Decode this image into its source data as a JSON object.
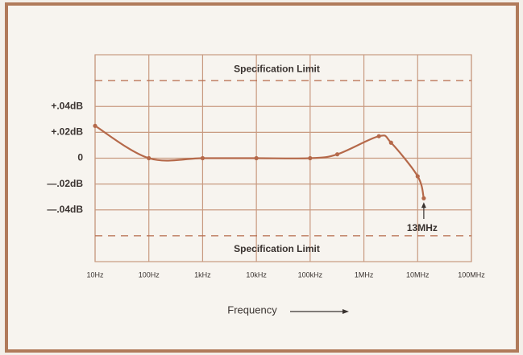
{
  "chart_data": {
    "type": "line",
    "x_label": "Frequency",
    "xscale": "log",
    "xlim": [
      10,
      100000000
    ],
    "xticks": [
      {
        "value": 10,
        "label": "10Hz"
      },
      {
        "value": 100,
        "label": "100Hz"
      },
      {
        "value": 1000,
        "label": "1kHz"
      },
      {
        "value": 10000,
        "label": "10kHz"
      },
      {
        "value": 100000,
        "label": "100kHz"
      },
      {
        "value": 1000000,
        "label": "1MHz"
      },
      {
        "value": 10000000,
        "label": "10MHz"
      },
      {
        "value": 100000000,
        "label": "100MHz"
      }
    ],
    "ylim": [
      -0.08,
      0.08
    ],
    "yticks": [
      {
        "value": 0.04,
        "label": "+.04dB"
      },
      {
        "value": 0.02,
        "label": "+.02dB"
      },
      0,
      {
        "value": -0.02,
        "label": "—.02dB"
      },
      {
        "value": -0.04,
        "label": "—.04dB"
      }
    ],
    "grid": true,
    "spec_limits": [
      {
        "value": 0.06,
        "label": "Specification Limit"
      },
      {
        "value": -0.06,
        "label": "Specification Limit"
      }
    ],
    "annotation": {
      "x": 13000000,
      "label": "13MHz"
    },
    "series": [
      {
        "color": "#b5694a",
        "x": [
          10,
          100,
          1000,
          10000,
          100000,
          320000,
          1900000,
          3200000,
          10000000,
          13000000
        ],
        "values": [
          0.025,
          0,
          0,
          0,
          0,
          0.003,
          0.017,
          0.012,
          -0.014,
          -0.031
        ]
      }
    ]
  }
}
